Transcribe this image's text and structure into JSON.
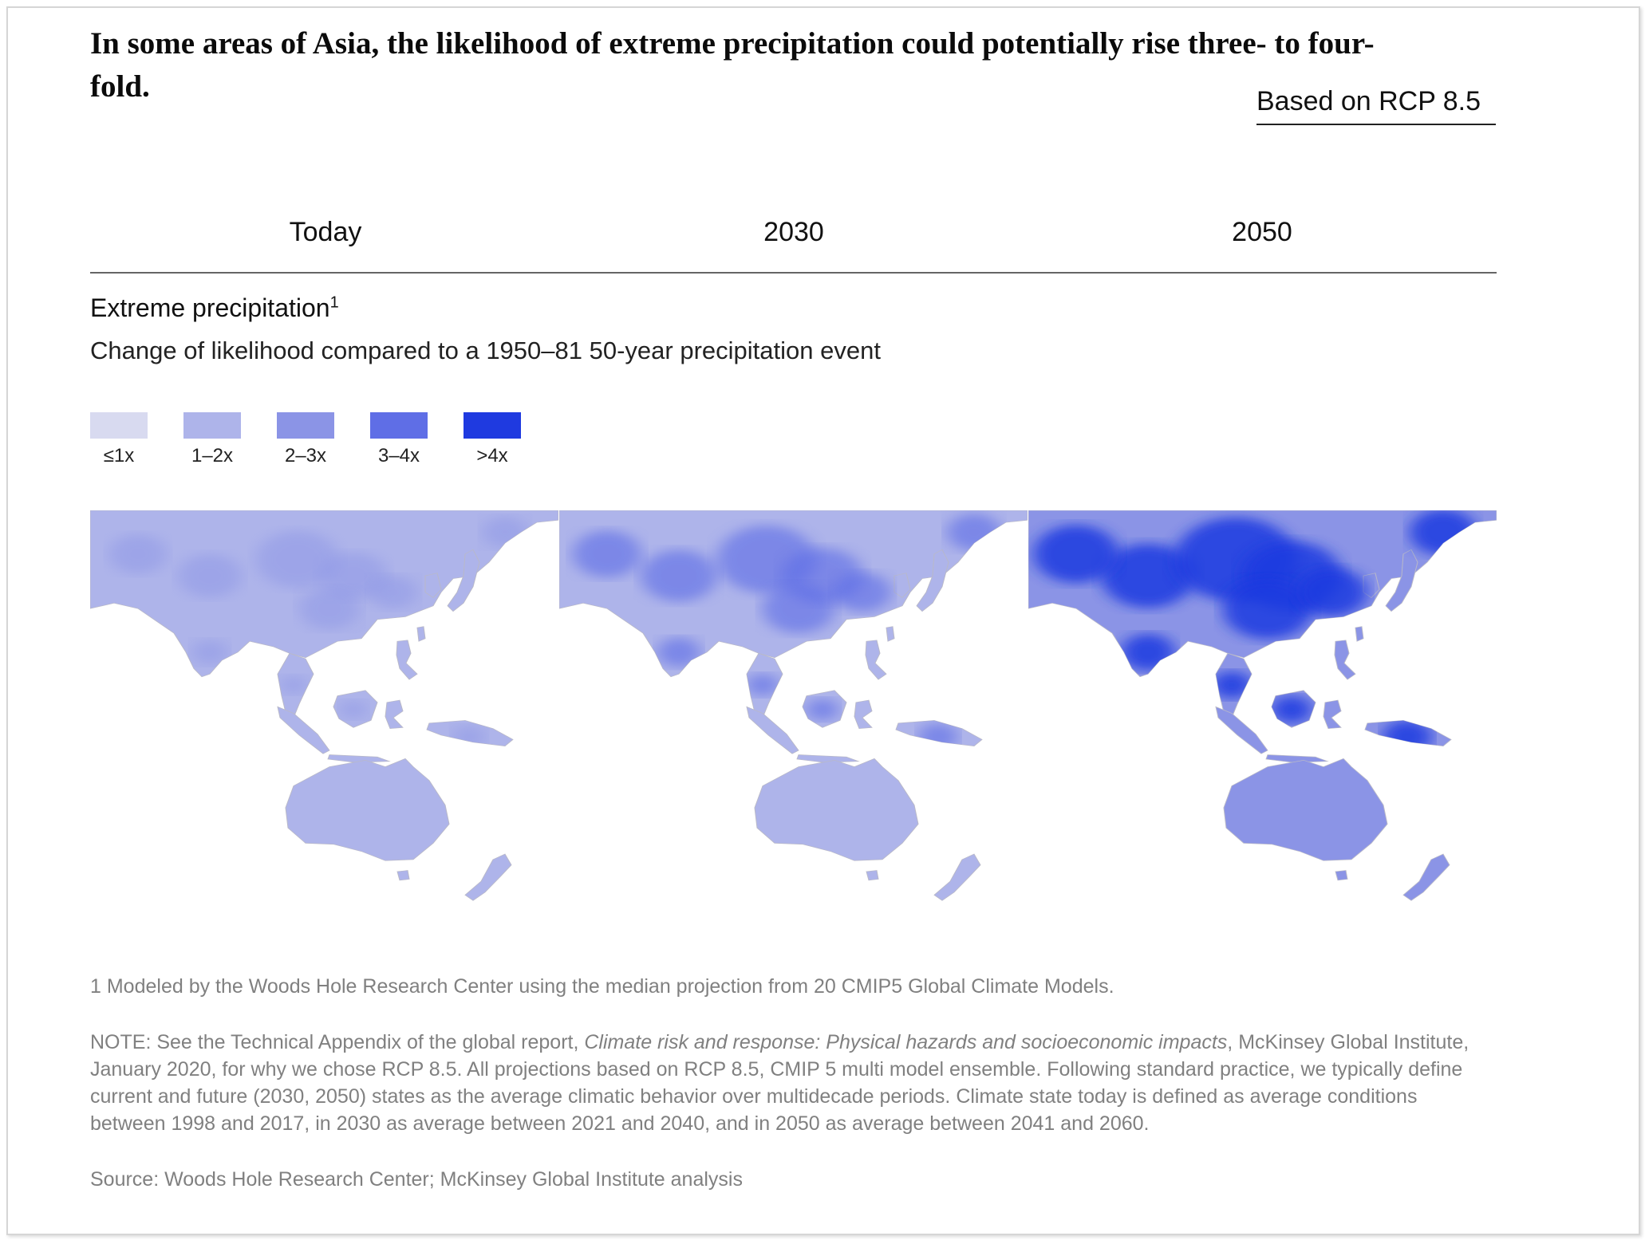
{
  "headline": "In some areas of Asia, the likelihood of extreme precipitation could potentially rise three- to four-fold.",
  "scenario_tab": "Based on RCP 8.5",
  "columns": [
    "Today",
    "2030",
    "2050"
  ],
  "metric": {
    "title": "Extreme precipitation",
    "footnote_ref": "1",
    "subtitle": "Change of likelihood compared to a 1950–81 50-year precipitation event"
  },
  "legend": [
    {
      "label": "≤1x",
      "color": "#d8daf0"
    },
    {
      "label": "1–2x",
      "color": "#aeb4ea"
    },
    {
      "label": "2–3x",
      "color": "#8b94e6"
    },
    {
      "label": "3–4x",
      "color": "#5f6ee6"
    },
    {
      "label": ">4x",
      "color": "#1f3ae0"
    }
  ],
  "maps": [
    {
      "period": "Today",
      "dominant_class": "1–2x",
      "hotspot_class": "2–3x"
    },
    {
      "period": "2030",
      "dominant_class": "1–2x",
      "hotspot_class": "3–4x"
    },
    {
      "period": "2050",
      "dominant_class": "2–3x",
      "hotspot_class": ">4x"
    }
  ],
  "footnotes": {
    "note1": "1 Modeled by the Woods Hole Research Center using the median projection from 20 CMIP5 Global Climate Models.",
    "note_prefix": "NOTE: See the Technical Appendix of the global report, ",
    "note_italic": "Climate risk and response: Physical hazards and socioeconomic impacts",
    "note_rest": ", McKinsey Global Institute, January 2020, for why we chose RCP 8.5. All projections based on RCP 8.5, CMIP 5 multi model ensemble. Following standard practice, we typically define current and future (2030, 2050) states as the average climatic behavior over multidecade periods. Climate state today is defined as average conditions between 1998 and 2017, in 2030 as average between 2021 and 2040, and in 2050 as average between 2041 and 2060.",
    "source": "Source: Woods Hole Research Center; McKinsey Global Institute analysis"
  }
}
